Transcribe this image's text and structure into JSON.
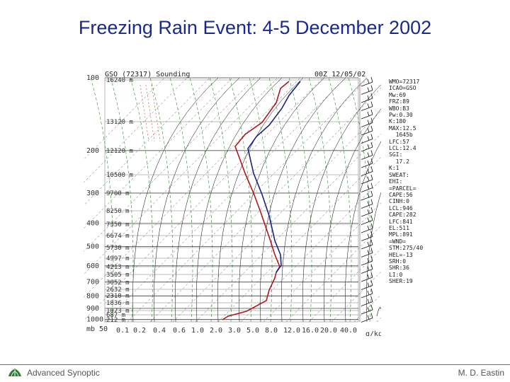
{
  "slide": {
    "title": "Freezing Rain Event: 4-5 December 2002",
    "footer_left": "Advanced Synoptic",
    "footer_right": "M. D. Eastin",
    "logo_icon": "green-leaf-logo"
  },
  "sounding": {
    "header_left": "GSO (72317) Sounding",
    "header_right": "00Z 12/05/02",
    "pressure_ticks": [
      "100",
      "200",
      "300",
      "400",
      "500",
      "600",
      "700",
      "800",
      "900",
      "1000"
    ],
    "height_labels": [
      "16240 m",
      "13120 m",
      "12120 m",
      "10500 m",
      "9700 m",
      "8250 m",
      "7350 m",
      "6674 m",
      "5730 m",
      "4997 m",
      "4213 m",
      "3505 m",
      "3052 m",
      "2632 m",
      "2310 m",
      "1836 m",
      "1073 m",
      "687 m",
      "212 m"
    ],
    "mixing_ratio_labels": [
      "0.1",
      "0.2",
      "0.4",
      "0.6",
      "1.0",
      "2.0",
      "3.0",
      "5.0",
      "8.0",
      "12.0",
      "16.0",
      "20.0",
      "40.0"
    ],
    "axis_note": "g/kg",
    "bottom_left": "mb",
    "bottom_start": "50",
    "colors": {
      "temperature": "#b0171f",
      "dewpoint": "#1a237e",
      "dry_adiabat": "#000000",
      "moist_adiabat": "#2e8b2e",
      "mixing_ratio": "#c0392b"
    }
  },
  "stats_panel": [
    "WMO=72317",
    "ICAO=GSO",
    "Mw:69",
    "FRZ:89",
    "WBO:B3",
    "Pw:0.30",
    "K:180",
    "MAX:12.5",
    "  1645b",
    "LFC:57",
    "LCL:12.4",
    "SGI:",
    "  17.2",
    "K:1",
    "SWEAT:",
    "EHI:",
    "=PARCEL=",
    "CAPE:56",
    "CINH:0",
    "LCL:946",
    "CAPE:282",
    "LFC:841",
    "EL:511",
    "MPL:891",
    "=WND=",
    "STM:275/40",
    "HEL=-13",
    "SRH:0",
    "SHR:36",
    "LI:0",
    "SHER:19"
  ]
}
